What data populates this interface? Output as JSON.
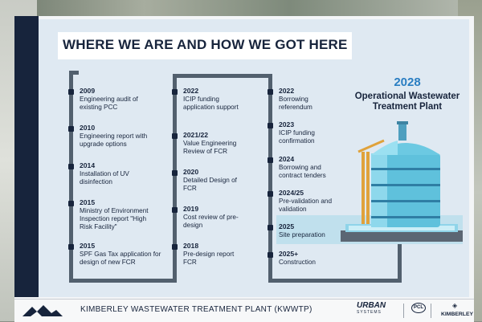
{
  "heading": "WHERE WE ARE AND HOW WE GOT HERE",
  "column1": [
    {
      "year": "2009",
      "text": "Engineering audit of existing PCC"
    },
    {
      "year": "2010",
      "text": "Engineering report with upgrade options"
    },
    {
      "year": "2014",
      "text": "Installation of UV disinfection"
    },
    {
      "year": "2015",
      "text": "Ministry of Environment Inspection report \"High Risk Facility\""
    },
    {
      "year": "2015",
      "text": "SPF Gas Tax application for design of new FCR"
    }
  ],
  "column2": [
    {
      "year": "2022",
      "text": "ICIP funding application support"
    },
    {
      "year": "2021/22",
      "text": "Value Engineering Review of FCR"
    },
    {
      "year": "2020",
      "text": "Detailed Design of FCR"
    },
    {
      "year": "2019",
      "text": "Cost review of pre-design"
    },
    {
      "year": "2018",
      "text": "Pre-design report FCR"
    }
  ],
  "column3": [
    {
      "year": "2022",
      "text": "Borrowing referendum"
    },
    {
      "year": "2023",
      "text": "ICIP funding confirmation"
    },
    {
      "year": "2024",
      "text": "Borrowing and contract tenders"
    },
    {
      "year": "2024/25",
      "text": "Pre-validation and validation"
    },
    {
      "year": "2025",
      "text": "Site preparation"
    },
    {
      "year": "2025+",
      "text": "Construction"
    }
  ],
  "goal": {
    "year": "2028",
    "title": "Operational Wastewater Treatment Plant"
  },
  "footer": {
    "project": "KIMBERLEY WASTEWATER TREATMENT PLANT (KWWTP)",
    "logo_urban": "URBAN",
    "logo_urban_sub": "SYSTEMS",
    "logo_pcl": "PCL",
    "logo_kimberley": "KIMBERLEY"
  },
  "colors": {
    "navy": "#17243c",
    "pipe": "#52606e",
    "tank": "#5fc1dc",
    "accent_blue": "#2a7ec2"
  }
}
